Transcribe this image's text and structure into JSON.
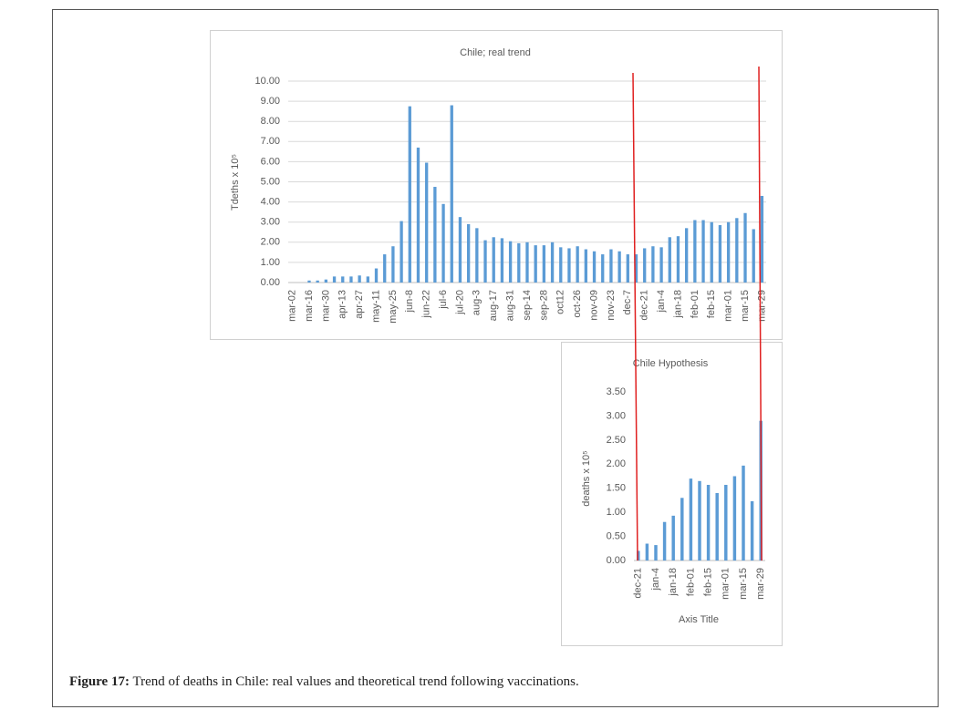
{
  "chart_data": [
    {
      "type": "bar",
      "title": "Chile; real trend",
      "y_label": "Tdeths x 10⁵",
      "color": "#5b9bd5",
      "grid": true,
      "categories": [
        "mar-02",
        null,
        "mar-16",
        null,
        "mar-30",
        null,
        "apr-13",
        null,
        "apr-27",
        null,
        "may-11",
        null,
        "may-25",
        null,
        "jun-8",
        null,
        "jun-22",
        null,
        "jul-6",
        null,
        "jul-20",
        null,
        "aug-3",
        null,
        "aug-17",
        null,
        "aug-31",
        null,
        "sep-14",
        null,
        "sep-28",
        null,
        "oct12",
        null,
        "oct-26",
        null,
        "nov-09",
        null,
        "nov-23",
        null,
        "dec-7",
        null,
        "dec-21",
        null,
        "jan-4",
        null,
        "jan-18",
        null,
        "feb-01",
        null,
        "feb-15",
        null,
        "mar-01",
        null,
        "mar-15",
        null,
        "mar-29"
      ],
      "values": [
        0,
        0,
        0.1,
        0.1,
        0.15,
        0.3,
        0.3,
        0.3,
        0.35,
        0.3,
        0.7,
        1.4,
        1.8,
        3.05,
        8.75,
        6.7,
        5.95,
        4.75,
        3.9,
        8.8,
        3.25,
        2.9,
        2.7,
        2.1,
        2.25,
        2.2,
        2.05,
        1.95,
        2.0,
        1.85,
        1.85,
        2.0,
        1.75,
        1.7,
        1.8,
        1.65,
        1.55,
        1.4,
        1.65,
        1.55,
        1.4,
        1.4,
        1.7,
        1.8,
        1.75,
        2.25,
        2.3,
        2.7,
        3.1,
        3.1,
        3.0,
        2.85,
        3.0,
        3.2,
        3.45,
        2.65,
        4.3
      ],
      "ylim": [
        0,
        10
      ],
      "yticks": [
        {
          "value": 0,
          "label": "0.00"
        },
        {
          "value": 1,
          "label": "1.00"
        },
        {
          "value": 2,
          "label": "2.00"
        },
        {
          "value": 3,
          "label": "3.00"
        },
        {
          "value": 4,
          "label": "4.00"
        },
        {
          "value": 5,
          "label": "5.00"
        },
        {
          "value": 6,
          "label": "6.00"
        },
        {
          "value": 7,
          "label": "7.00"
        },
        {
          "value": 8,
          "label": "8.00"
        },
        {
          "value": 9,
          "label": "9.00"
        },
        {
          "value": 10,
          "label": "10.00"
        }
      ]
    },
    {
      "type": "bar",
      "title": "Chile Hypothesis",
      "y_label": "deaths x 10⁵",
      "x_label": "Axis Title",
      "color": "#5b9bd5",
      "grid": false,
      "categories": [
        "dec-21",
        null,
        "jan-4",
        null,
        "jan-18",
        null,
        "feb-01",
        null,
        "feb-15",
        null,
        "mar-01",
        null,
        "mar-15",
        null,
        "mar-29"
      ],
      "values": [
        0.2,
        0.35,
        0.32,
        0.8,
        0.93,
        1.3,
        1.7,
        1.65,
        1.57,
        1.4,
        1.57,
        1.75,
        1.97,
        1.23,
        2.9
      ],
      "ylim": [
        0,
        3.5
      ],
      "yticks": [
        {
          "value": 0,
          "label": "0.00"
        },
        {
          "value": 0.5,
          "label": "0.50"
        },
        {
          "value": 1,
          "label": "1.00"
        },
        {
          "value": 1.5,
          "label": "1.50"
        },
        {
          "value": 2,
          "label": "2.00"
        },
        {
          "value": 2.5,
          "label": "2.50"
        },
        {
          "value": 3,
          "label": "3.00"
        },
        {
          "value": 3.5,
          "label": "3.50"
        }
      ]
    }
  ],
  "caption": {
    "label": "Figure 17:",
    "text": "Trend of deaths in Chile: real values and theoretical trend following vaccinations."
  }
}
